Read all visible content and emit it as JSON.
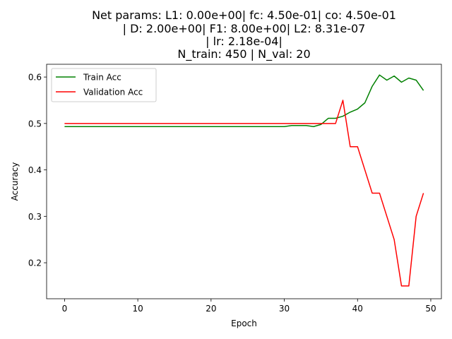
{
  "chart_data": {
    "type": "line",
    "title_lines": [
      "Net params: L1: 0.00e+00| fc: 4.50e-01| co: 4.50e-01",
      "| D: 2.00e+00| F1: 8.00e+00| L2: 8.31e-07",
      "| lr: 2.18e-04|",
      "N_train: 450 | N_val: 20"
    ],
    "xlabel": "Epoch",
    "ylabel": "Accuracy",
    "xlim": [
      -2.45,
      51.45
    ],
    "ylim": [
      0.1225,
      0.6275
    ],
    "xticks": [
      0,
      10,
      20,
      30,
      40,
      50
    ],
    "xtick_labels": [
      "0",
      "10",
      "20",
      "30",
      "40",
      "50"
    ],
    "yticks": [
      0.2,
      0.3,
      0.4,
      0.5,
      0.6
    ],
    "ytick_labels": [
      "0.2",
      "0.3",
      "0.4",
      "0.5",
      "0.6"
    ],
    "legend_position": "upper-left",
    "series": [
      {
        "name": "Train Acc",
        "color": "#008000",
        "x": [
          0,
          1,
          2,
          3,
          4,
          5,
          6,
          7,
          8,
          9,
          10,
          11,
          12,
          13,
          14,
          15,
          16,
          17,
          18,
          19,
          20,
          21,
          22,
          23,
          24,
          25,
          26,
          27,
          28,
          29,
          30,
          31,
          32,
          33,
          34,
          35,
          36,
          37,
          38,
          39,
          40,
          41,
          42,
          43,
          44,
          45,
          46,
          47,
          48,
          49
        ],
        "values": [
          0.4933,
          0.4933,
          0.4933,
          0.4933,
          0.4933,
          0.4933,
          0.4933,
          0.4933,
          0.4933,
          0.4933,
          0.4933,
          0.4933,
          0.4933,
          0.4933,
          0.4933,
          0.4933,
          0.4933,
          0.4933,
          0.4933,
          0.4933,
          0.4933,
          0.4933,
          0.4933,
          0.4933,
          0.4933,
          0.4933,
          0.4933,
          0.4933,
          0.4933,
          0.4933,
          0.4933,
          0.4956,
          0.4956,
          0.4956,
          0.4933,
          0.4978,
          0.5111,
          0.5111,
          0.5156,
          0.5244,
          0.5311,
          0.5444,
          0.58,
          0.6044,
          0.5933,
          0.6022,
          0.5889,
          0.5978,
          0.5933,
          0.5711
        ]
      },
      {
        "name": "Validation Acc",
        "color": "#ff0000",
        "x": [
          0,
          1,
          2,
          3,
          4,
          5,
          6,
          7,
          8,
          9,
          10,
          11,
          12,
          13,
          14,
          15,
          16,
          17,
          18,
          19,
          20,
          21,
          22,
          23,
          24,
          25,
          26,
          27,
          28,
          29,
          30,
          31,
          32,
          33,
          34,
          35,
          36,
          37,
          38,
          39,
          40,
          41,
          42,
          43,
          44,
          45,
          46,
          47,
          48,
          49
        ],
        "values": [
          0.5,
          0.5,
          0.5,
          0.5,
          0.5,
          0.5,
          0.5,
          0.5,
          0.5,
          0.5,
          0.5,
          0.5,
          0.5,
          0.5,
          0.5,
          0.5,
          0.5,
          0.5,
          0.5,
          0.5,
          0.5,
          0.5,
          0.5,
          0.5,
          0.5,
          0.5,
          0.5,
          0.5,
          0.5,
          0.5,
          0.5,
          0.5,
          0.5,
          0.5,
          0.5,
          0.5,
          0.5,
          0.5,
          0.55,
          0.45,
          0.45,
          0.4,
          0.35,
          0.35,
          0.3,
          0.25,
          0.15,
          0.15,
          0.3,
          0.35
        ]
      }
    ]
  }
}
